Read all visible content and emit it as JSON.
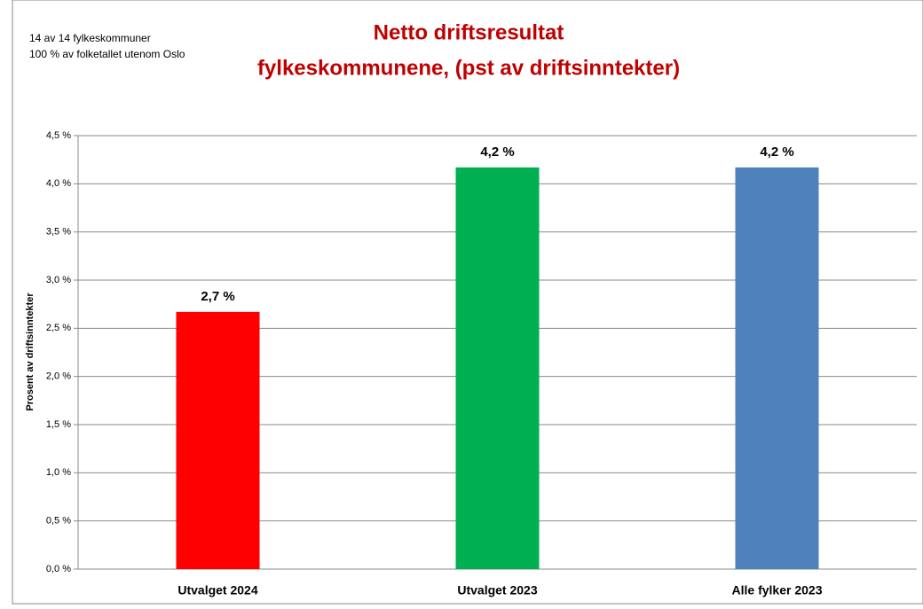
{
  "chart_data": {
    "type": "bar",
    "title": [
      "Netto driftsresultat",
      "fylkeskommunene, (pst av driftsinntekter)"
    ],
    "notes": [
      "14 av 14 fylkeskommuner",
      "100 % av folketallet utenom Oslo"
    ],
    "y_label": "Prosent av driftsinntekter",
    "categories": [
      "Utvalget 2024",
      "Utvalget 2023",
      "Alle fylker 2023"
    ],
    "values": [
      2.67,
      4.17,
      4.17
    ],
    "value_labels": [
      "2,7 %",
      "4,2 %",
      "4,2 %"
    ],
    "colors": [
      "#ff0000",
      "#00b050",
      "#4f81bd"
    ],
    "ylim": [
      0,
      4.5
    ],
    "yticks": [
      {
        "value": 0,
        "label": "0,0 %"
      },
      {
        "value": 0.5,
        "label": "0,5 %"
      },
      {
        "value": 1,
        "label": "1,0 %"
      },
      {
        "value": 1.5,
        "label": "1,5 %"
      },
      {
        "value": 2,
        "label": "2,0 %"
      },
      {
        "value": 2.5,
        "label": "2,5 %"
      },
      {
        "value": 3,
        "label": "3,0 %"
      },
      {
        "value": 3.5,
        "label": "3,5 %"
      },
      {
        "value": 4,
        "label": "4,0 %"
      },
      {
        "value": 4.5,
        "label": "4,5 %"
      }
    ],
    "grid": true
  }
}
